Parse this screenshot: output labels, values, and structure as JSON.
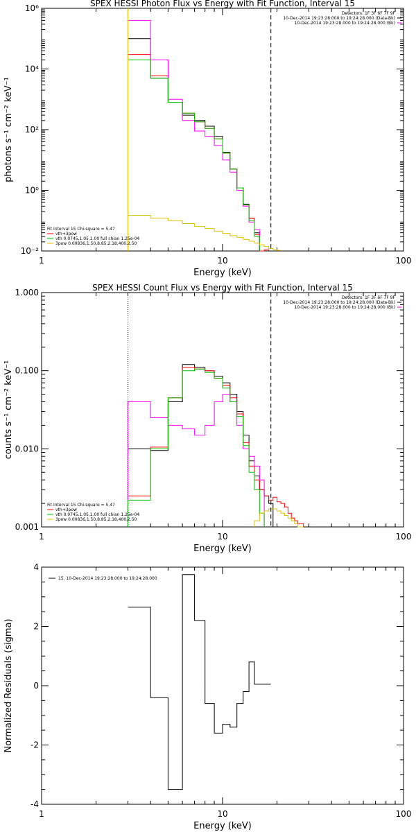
{
  "chart_data": [
    {
      "type": "line",
      "title": "SPEX HESSI Photon Flux vs Energy with Fit Function, Interval 15",
      "xlabel": "Energy (keV)",
      "ylabel": "photons s⁻¹ cm⁻² keV⁻¹",
      "xscale": "log",
      "yscale": "log",
      "xlim": [
        1,
        100
      ],
      "ylim": [
        0.01,
        1000000
      ],
      "x_ticks": [
        {
          "value": 1,
          "label": "1"
        },
        {
          "value": 10,
          "label": "10"
        },
        {
          "value": 100,
          "label": "100"
        }
      ],
      "y_ticks": [
        {
          "value": 0.01,
          "label": "10⁻²"
        },
        {
          "value": 1,
          "label": "10⁰"
        },
        {
          "value": 100,
          "label": "10²"
        },
        {
          "value": 10000,
          "label": "10⁴"
        },
        {
          "value": 1000000,
          "label": "10⁶"
        }
      ],
      "bin_edges": [
        3,
        4,
        5,
        6,
        7,
        8,
        9,
        10,
        11,
        12,
        13,
        14,
        15,
        16,
        17,
        18,
        19,
        20,
        21,
        22,
        23,
        24,
        25,
        26,
        28,
        30
      ],
      "series": [
        {
          "name": "Data",
          "color": "#000000",
          "values": [
            100000,
            5000,
            800,
            300,
            200,
            130,
            60,
            18,
            5,
            1.2,
            0.35,
            0.12,
            0.04,
            null,
            null,
            null,
            null,
            null,
            null,
            null,
            null,
            null,
            null,
            null,
            null
          ]
        },
        {
          "name": "vth+3pow",
          "color": "#ff0000",
          "values": [
            30000,
            6000,
            800,
            350,
            180,
            110,
            50,
            17,
            5,
            1.2,
            0.33,
            0.12,
            0.035,
            0.01,
            0.011,
            null,
            null,
            null,
            null,
            null,
            null,
            null,
            null,
            null,
            null
          ]
        },
        {
          "name": "Back",
          "color": "#ff00ff",
          "values": [
            400000,
            20000,
            1000,
            200,
            90,
            60,
            30,
            10,
            4,
            1,
            0.3,
            0.09,
            0.05,
            null,
            null,
            null,
            null,
            null,
            null,
            null,
            null,
            null,
            null,
            null,
            null
          ]
        },
        {
          "name": "vth 0.0745,1.05,1.00  full chian 1.25e-04",
          "color": "#00c000",
          "values": [
            20000,
            5000,
            800,
            350,
            180,
            110,
            50,
            17,
            5,
            1.2,
            0.33,
            0.1,
            0.03,
            null,
            null,
            null,
            null,
            null,
            null,
            null,
            null,
            null,
            null,
            null,
            null
          ]
        },
        {
          "name": "3pow 0.00836,1.50,8.85,2.18,400,2.50",
          "color": "#e0c000",
          "values": [
            0.15,
            0.12,
            0.1,
            0.08,
            0.065,
            0.055,
            0.045,
            0.038,
            0.032,
            0.028,
            0.024,
            0.021,
            0.018,
            0.016,
            0.014,
            0.012,
            0.011,
            0.0105,
            null,
            null,
            null,
            null,
            null,
            null,
            null
          ]
        }
      ],
      "vlines": [
        {
          "x": 3,
          "style": "solid",
          "color": "#e0c000"
        },
        {
          "x": 18.5,
          "style": "dashed",
          "color": "#000000"
        }
      ],
      "legend_top_right": [
        "Detectors: 1F 3F 6F 7F 9F",
        "10-Dec-2014 19:23:28.000 to 19:24:28.000 (Data-Bk)",
        "10-Dec-2014 19:23:28.000 to 19:24:28.000 (Bk)"
      ],
      "legend_bottom_left": [
        "Fit Interval 15   Chi-square = 5.47",
        "vth+3pow",
        "vth 0.0745,1.05,1.00  full chian 1.25e-04",
        "3pow 0.00836,1.50,8.85,2.18,400,2.50"
      ]
    },
    {
      "type": "line",
      "title": "SPEX HESSI Count Flux vs Energy with Fit Function, Interval 15",
      "xlabel": "Energy (keV)",
      "ylabel": "counts s⁻¹ cm⁻² keV⁻¹",
      "xscale": "log",
      "yscale": "log",
      "xlim": [
        1,
        100
      ],
      "ylim": [
        0.001,
        1
      ],
      "x_ticks": [
        {
          "value": 1,
          "label": "1"
        },
        {
          "value": 10,
          "label": "10"
        },
        {
          "value": 100,
          "label": "100"
        }
      ],
      "y_ticks": [
        {
          "value": 0.001,
          "label": "0.001"
        },
        {
          "value": 0.01,
          "label": "0.010"
        },
        {
          "value": 0.1,
          "label": "0.100"
        },
        {
          "value": 1,
          "label": "1.000"
        }
      ],
      "bin_edges": [
        3,
        4,
        5,
        6,
        7,
        8,
        9,
        10,
        11,
        12,
        13,
        14,
        15,
        16,
        17,
        18,
        19,
        20,
        21,
        22,
        23,
        24,
        25,
        26,
        28,
        30
      ],
      "series": [
        {
          "name": "Data",
          "color": "#000000",
          "values": [
            0.01,
            0.0095,
            0.04,
            0.12,
            0.11,
            0.1,
            0.085,
            0.07,
            0.05,
            0.03,
            0.015,
            0.007,
            0.0045,
            0.003,
            0.0025,
            0.002,
            null,
            null,
            null,
            null,
            null,
            null,
            null,
            null,
            null
          ]
        },
        {
          "name": "vth+3pow",
          "color": "#ff0000",
          "values": [
            0.0025,
            0.0105,
            0.045,
            0.11,
            0.105,
            0.1,
            0.08,
            0.065,
            0.045,
            0.028,
            0.012,
            0.006,
            0.004,
            0.003,
            0.0025,
            0.0022,
            0.0024,
            0.0021,
            0.002,
            0.0018,
            0.0015,
            0.0013,
            0.0012,
            0.0011,
            null
          ]
        },
        {
          "name": "Back",
          "color": "#ff00ff",
          "values": [
            0.04,
            0.025,
            0.02,
            0.018,
            0.015,
            0.02,
            0.04,
            0.05,
            0.04,
            0.02,
            0.01,
            0.008,
            0.006,
            0.004,
            null,
            null,
            null,
            null,
            null,
            null,
            null,
            null,
            null,
            null,
            null
          ]
        },
        {
          "name": "vth 0.0745,1.05,1.00  full chian 1.25e-04",
          "color": "#00c000",
          "values": [
            0.0022,
            0.01,
            0.045,
            0.1,
            0.105,
            0.095,
            0.08,
            0.06,
            0.04,
            0.026,
            0.011,
            0.005,
            0.003,
            0.0015,
            null,
            null,
            null,
            null,
            null,
            null,
            null,
            null,
            null,
            null,
            null
          ]
        },
        {
          "name": "3pow 0.00836,1.50,8.85,2.18,400,2.50",
          "color": "#e0c000",
          "values": [
            null,
            null,
            null,
            null,
            null,
            null,
            null,
            null,
            null,
            null,
            null,
            null,
            0.0012,
            0.0015,
            0.0016,
            0.0017,
            0.0017,
            0.0016,
            0.0015,
            0.0014,
            0.0013,
            0.0012,
            0.0011,
            0.001,
            null
          ]
        }
      ],
      "vlines": [
        {
          "x": 3,
          "style": "dotted",
          "color": "#000000"
        },
        {
          "x": 18.5,
          "style": "dashed",
          "color": "#000000"
        }
      ],
      "legend_top_right": [
        "Detectors: 1F 3F 6F 7F 9F",
        "10-Dec-2014 19:23:28.000 to 19:24:28.000 (Data-Bk)",
        "10-Dec-2014 19:23:28.000 to 19:24:28.000 (Bk)"
      ],
      "legend_bottom_left": [
        "Fit Interval 15   Chi-square = 5.47",
        "vth+3pow",
        "vth 0.0745,1.05,1.00  full chian 1.25e-04",
        "3pow 0.00836,1.50,8.85,2.18,400,2.50"
      ]
    },
    {
      "type": "line",
      "title": "",
      "xlabel": "Energy (keV)",
      "ylabel": "Normalized Residuals (sigma)",
      "xscale": "log",
      "yscale": "linear",
      "xlim": [
        1,
        100
      ],
      "ylim": [
        -4,
        4
      ],
      "x_ticks": [
        {
          "value": 1,
          "label": "1"
        },
        {
          "value": 10,
          "label": "10"
        },
        {
          "value": 100,
          "label": "100"
        }
      ],
      "y_ticks": [
        {
          "value": -4,
          "label": "-4"
        },
        {
          "value": -2,
          "label": "-2"
        },
        {
          "value": 0,
          "label": "0"
        },
        {
          "value": 2,
          "label": "2"
        },
        {
          "value": 4,
          "label": "4"
        }
      ],
      "bin_edges": [
        3,
        4,
        5,
        6,
        7,
        8,
        9,
        10,
        11,
        12,
        13,
        14,
        15,
        16,
        17,
        18.5
      ],
      "series": [
        {
          "name": "15. 10-Dec-2014 19:23:28.000 to 19:24:28.000",
          "color": "#000000",
          "values": [
            2.65,
            -0.4,
            -3.5,
            3.75,
            2.2,
            -0.6,
            -1.6,
            -1.3,
            -1.4,
            -0.6,
            -0.2,
            0.8,
            0.05,
            0.05,
            0.05
          ]
        }
      ],
      "legend_top_left": [
        "15. 10-Dec-2014 19:23:28.000 to 19:24:28.000"
      ]
    }
  ]
}
